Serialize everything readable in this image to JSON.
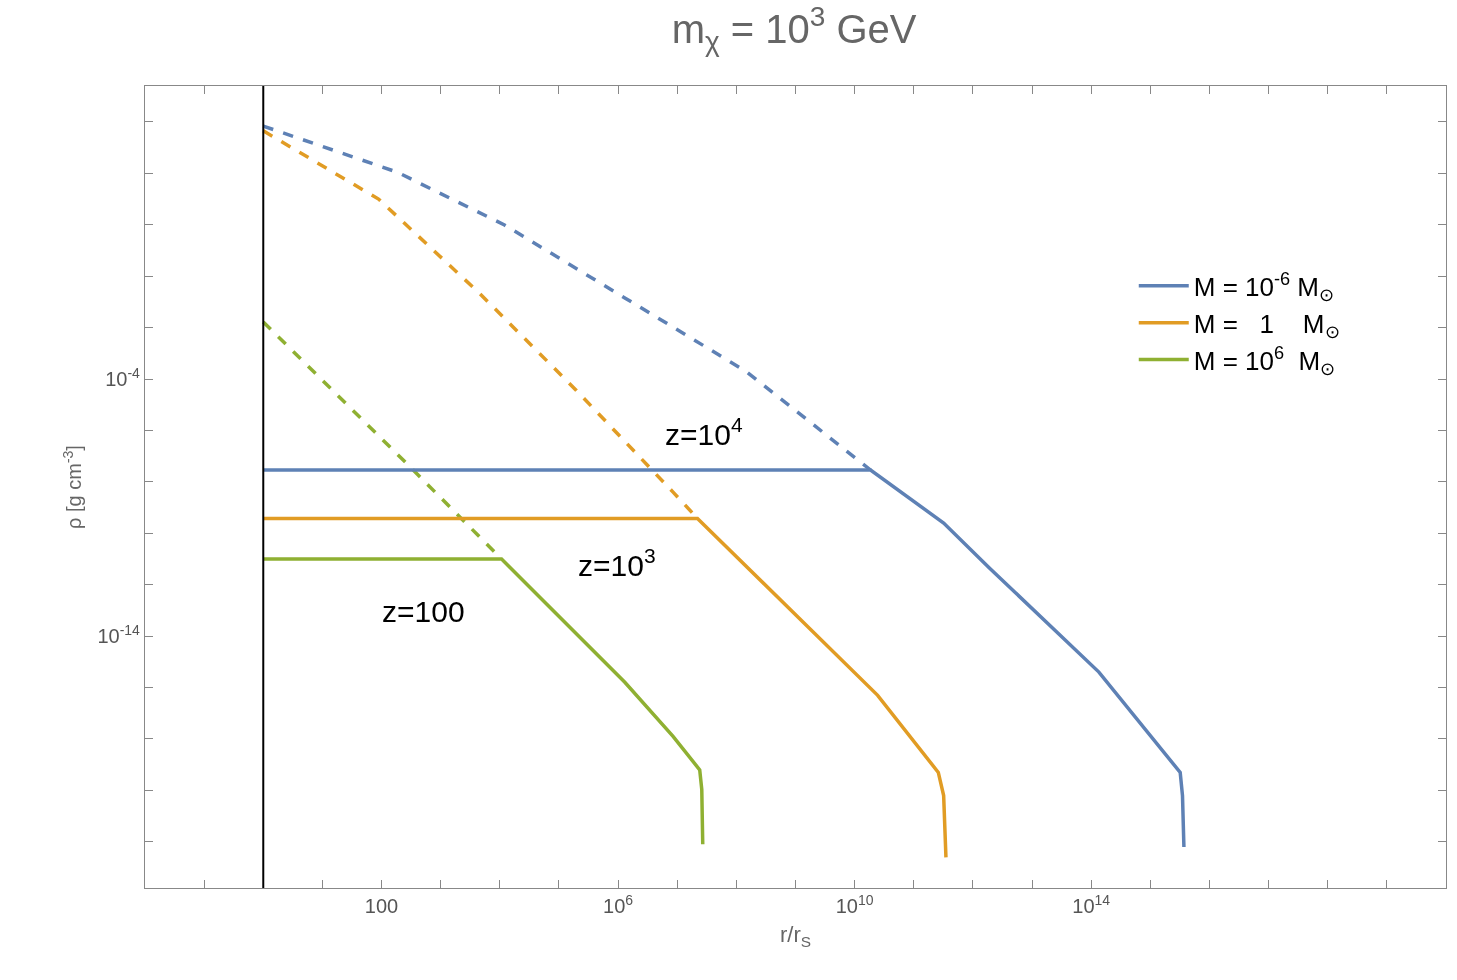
{
  "chart_data": {
    "type": "line",
    "title": "m$_{χ}$ = 10$^{3}$ GeV",
    "xlabel": "r/r$_{S}$",
    "ylabel": "ρ [g cm$^{-3}$]",
    "log": "xy",
    "legend": "right",
    "xlim": [
      0.01,
      1e+20
    ],
    "ylim": [
      1.6e-24,
      25000000.0
    ],
    "xticks": [
      {
        "value": 0.1,
        "label": null
      },
      {
        "value": 1,
        "label": null
      },
      {
        "value": 10,
        "label": null
      },
      100,
      {
        "value": 1000.0,
        "label": null
      },
      {
        "value": 10000.0,
        "label": null
      },
      {
        "value": 100000.0,
        "label": null
      },
      {
        "value": 1000000.0,
        "label": "10$^{6}$"
      },
      {
        "value": 10000000.0,
        "label": null
      },
      {
        "value": 100000000.0,
        "label": null
      },
      {
        "value": 1000000000.0,
        "label": null
      },
      {
        "value": 10000000000.0,
        "label": "10$^{10}$"
      },
      {
        "value": 100000000000.0,
        "label": null
      },
      {
        "value": 1000000000000.0,
        "label": null
      },
      {
        "value": 10000000000000.0,
        "label": null
      },
      {
        "value": 100000000000000.0,
        "label": "10$^{14}$"
      },
      {
        "value": 1000000000000000.0,
        "label": null
      },
      {
        "value": 1e+16,
        "label": null
      },
      {
        "value": 1e+17,
        "label": null
      },
      {
        "value": 1e+18,
        "label": null
      },
      {
        "value": 1e+19,
        "label": null
      }
    ],
    "yticks": [
      {
        "value": 1e-22,
        "label": null
      },
      {
        "value": 1e-20,
        "label": null
      },
      {
        "value": 1e-18,
        "label": null
      },
      {
        "value": 1e-16,
        "label": null
      },
      {
        "value": 1e-14,
        "label": "10$^{-14}$"
      },
      {
        "value": 1e-12,
        "label": null
      },
      {
        "value": 1e-10,
        "label": null
      },
      {
        "value": 1e-08,
        "label": null
      },
      {
        "value": 1e-06,
        "label": null
      },
      {
        "value": 0.0001,
        "label": "10$^{-4}$"
      },
      {
        "value": 0.01,
        "label": null
      },
      {
        "value": 1,
        "label": null
      },
      {
        "value": 100,
        "label": null
      },
      {
        "value": 10000.0,
        "label": null
      },
      {
        "value": 1000000.0,
        "label": null
      }
    ],
    "ref_lines": [
      {
        "axis": "x",
        "value": 1,
        "color": "#000000"
      }
    ],
    "series": [
      {
        "color": "#5e81b5",
        "line_style": "dashed",
        "x": [
          1,
          186,
          12000.0,
          1320000.0,
          145000000.0,
          18600000000.0
        ],
        "values": [
          690000.0,
          11000.0,
          98,
          0.14,
          0.0002,
          2.9e-08
        ]
      },
      {
        "color": "#e19c24",
        "line_style": "dashed",
        "x": [
          1,
          89,
          4500.0,
          195000.0,
          8500000.0,
          22000000.0
        ],
        "values": [
          450000.0,
          1000.0,
          0.22,
          3.7e-05,
          4e-09,
          3.8e-10
        ]
      },
      {
        "color": "#8fb032",
        "line_style": "dashed",
        "x": [
          1,
          316,
          10700.0
        ],
        "values": [
          0.0166,
          3.5e-08,
          1e-11
        ]
      },
      {
        "name": "M = 10$^{-6}$ M$_{⊙}$",
        "color": "#5e81b5",
        "line_style": "solid",
        "x": [
          1,
          18600000000.0,
          320000000000.0,
          1900000000000.0,
          135000000000000.0,
          3200000000000000.0,
          3500000000000000.0,
          3700000000000000.0
        ],
        "values": [
          2.9e-08,
          2.9e-08,
          2.5e-10,
          4.5e-12,
          4e-16,
          5e-20,
          6.3e-21,
          6.3e-23
        ]
      },
      {
        "name": "M =   1    M$_{⊙}$",
        "color": "#e19c24",
        "line_style": "solid",
        "x": [
          1,
          22000000.0,
          24500000000.0,
          260000000000.0,
          320000000000.0,
          350000000000.0
        ],
        "values": [
          3.8e-10,
          3.8e-10,
          5e-17,
          5e-20,
          6.3e-21,
          2.5e-23
        ]
      },
      {
        "name": "M = 10$^{6}$  M$_{⊙}$",
        "color": "#8fb032",
        "line_style": "solid",
        "x": [
          1,
          10700.0,
          1300000.0,
          8500000.0,
          24000000.0,
          26000000.0,
          27000000.0
        ],
        "values": [
          1e-11,
          1e-11,
          1.6e-16,
          1.26e-18,
          6.3e-20,
          1.1e-20,
          8e-23
        ]
      }
    ],
    "annotations": [
      "z=10$^{4}$",
      "z=10$^{3}$",
      "z=100"
    ]
  }
}
